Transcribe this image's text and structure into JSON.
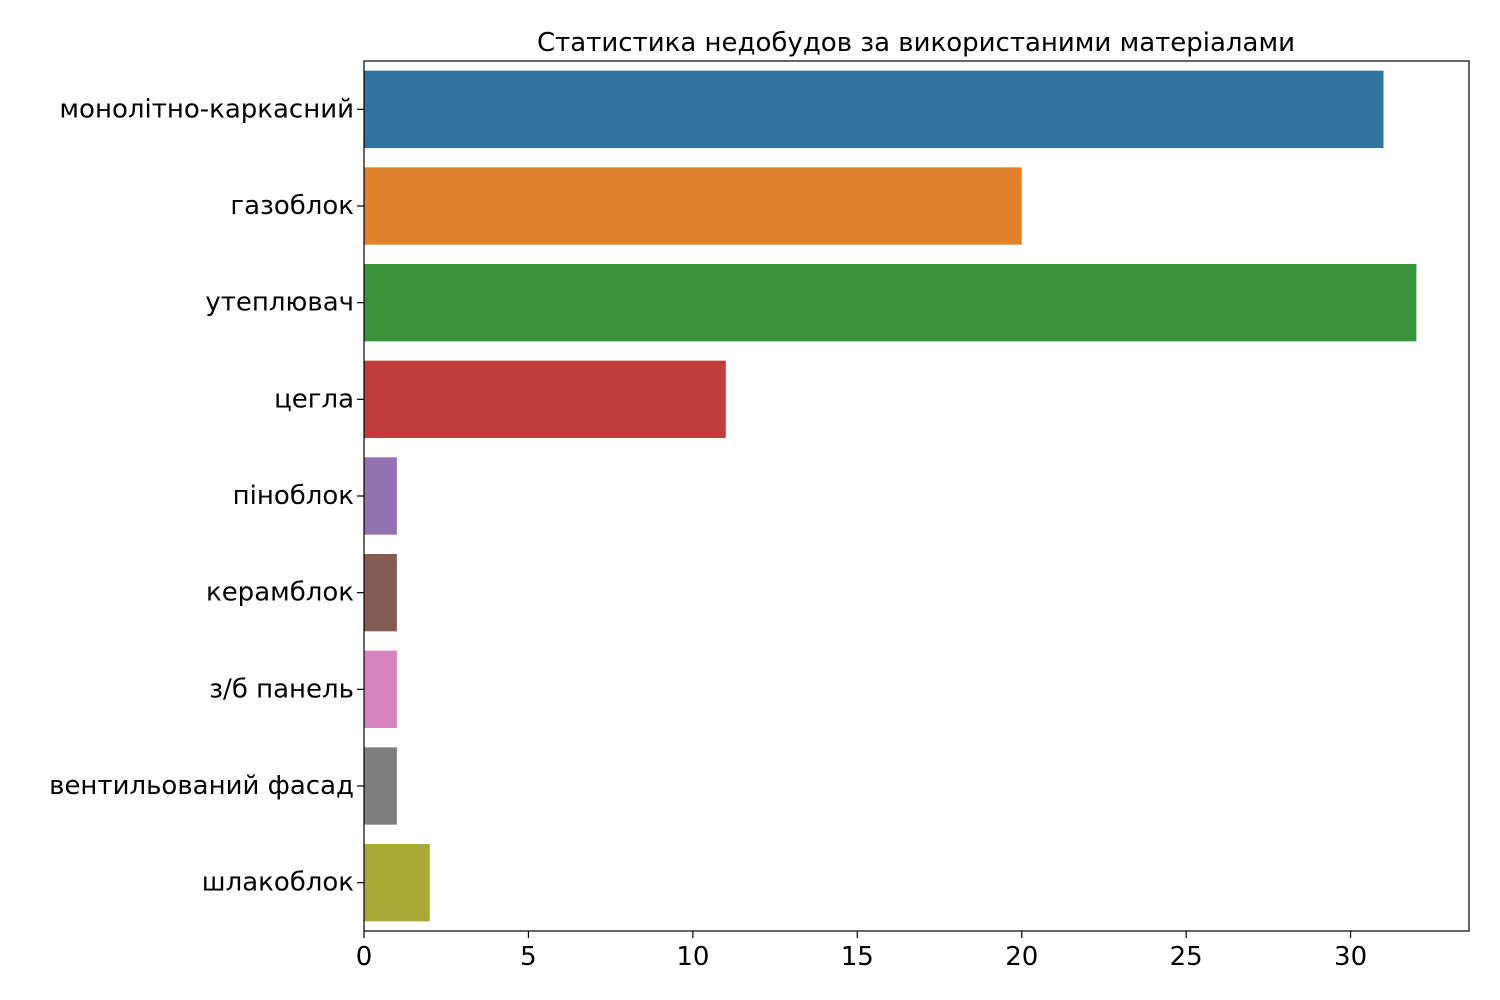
{
  "chart_data": {
    "type": "bar",
    "orientation": "horizontal",
    "title": "Статистика недобудов за використаними матеріалами",
    "xlabel": "",
    "ylabel": "",
    "categories": [
      "монолітно-каркасний",
      "газоблок",
      "утеплювач",
      "цегла",
      "піноблок",
      "керамблок",
      "з/б панель",
      "вентильований фасад",
      "шлакоблок"
    ],
    "values": [
      31,
      20,
      32,
      11,
      1,
      1,
      1,
      1,
      2
    ],
    "colors": [
      "#3274a1",
      "#e1812c",
      "#3a923a",
      "#c03d3e",
      "#9372b2",
      "#845b53",
      "#d684bd",
      "#7f7f7f",
      "#a9aa35"
    ],
    "xlim": [
      0,
      33.6
    ],
    "xticks": [
      0,
      5,
      10,
      15,
      20,
      25,
      30
    ],
    "grid": false,
    "legend": "none"
  }
}
